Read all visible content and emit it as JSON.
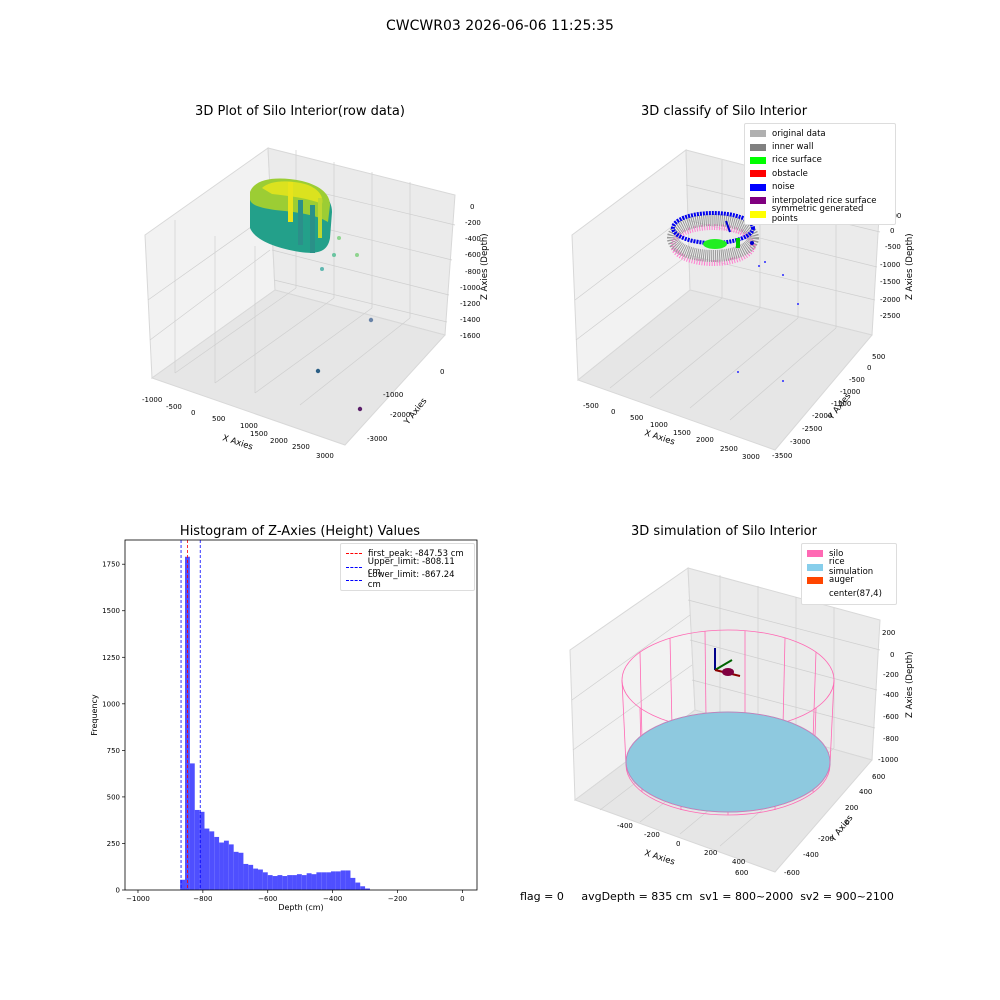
{
  "figure": {
    "suptitle": "CWCWR03 2026-06-06 11:25:35",
    "footer": "flag = 0     avgDepth = 835 cm  sv1 = 800~2000  sv2 = 900~2100"
  },
  "panels": {
    "raw": {
      "title": "3D Plot of Silo Interior(row data)",
      "xlabel": "X Axies",
      "ylabel": "Y Axies",
      "zlabel": "Z Axies (Depth)",
      "xticks": [
        "-1000",
        "-500",
        "0",
        "500",
        "1000",
        "1500",
        "2000",
        "2500",
        "3000"
      ],
      "yticks": [
        "0",
        "-1000",
        "-2000",
        "-3000"
      ],
      "zticks": [
        "0",
        "-200",
        "-400",
        "-600",
        "-800",
        "-1000",
        "-1200",
        "-1400",
        "-1600"
      ]
    },
    "classify": {
      "title": "3D classify of Silo Interior",
      "xlabel": "X Axies",
      "ylabel": "Y Axies",
      "zlabel": "Z Axies (Depth)",
      "xticks": [
        "-500",
        "0",
        "500",
        "1000",
        "1500",
        "2000",
        "2500",
        "3000"
      ],
      "yticks": [
        "500",
        "0",
        "-500",
        "-1000",
        "-1500",
        "-2000",
        "-2500",
        "-3000",
        "-3500"
      ],
      "zticks": [
        "500",
        "0",
        "-500",
        "-1000",
        "-1500",
        "-2000",
        "-2500"
      ],
      "legend": [
        {
          "label": "original data",
          "color": "#b0b0b0"
        },
        {
          "label": "inner wall",
          "color": "#808080"
        },
        {
          "label": "rice surface",
          "color": "#00ff00"
        },
        {
          "label": "obstacle",
          "color": "#ff0000"
        },
        {
          "label": "noise",
          "color": "#0000ff"
        },
        {
          "label": "interpolated rice surface",
          "color": "#800080"
        },
        {
          "label": "symmetric generated points",
          "color": "#ffff00"
        }
      ]
    },
    "simulation": {
      "title": "3D simulation of Silo Interior",
      "xlabel": "X Axies",
      "ylabel": "Y Axies",
      "zlabel": "Z Axies (Depth)",
      "xticks": [
        "-400",
        "-200",
        "0",
        "200",
        "400",
        "600"
      ],
      "yticks": [
        "600",
        "400",
        "200",
        "0",
        "-200",
        "-400",
        "-600"
      ],
      "zticks": [
        "200",
        "0",
        "-200",
        "-400",
        "-600",
        "-800",
        "-1000"
      ],
      "legend": [
        {
          "label": "silo",
          "color": "#ff69b4"
        },
        {
          "label": "rice simulation",
          "color": "#87ceeb"
        },
        {
          "label": "auger",
          "color": "#ff4500"
        },
        {
          "label": "center(87,4)",
          "color": "#ffffff"
        }
      ]
    }
  },
  "chart_data": [
    {
      "type": "bar",
      "title": "Histogram of Z-Axies (Height) Values",
      "xlabel": "Depth (cm)",
      "ylabel": "Frequency",
      "xlim": [
        -1040,
        45
      ],
      "ylim": [
        0,
        1880
      ],
      "xticks": [
        -1000,
        -800,
        -600,
        -400,
        -200,
        0
      ],
      "yticks": [
        0,
        250,
        500,
        750,
        1000,
        1250,
        1500,
        1750
      ],
      "bin_width": 15,
      "bin_start": -870,
      "values": [
        55,
        1790,
        680,
        430,
        420,
        330,
        315,
        285,
        255,
        265,
        245,
        205,
        200,
        140,
        135,
        115,
        110,
        95,
        80,
        75,
        80,
        75,
        80,
        80,
        85,
        80,
        90,
        85,
        95,
        95,
        95,
        100,
        100,
        105,
        105,
        65,
        40,
        20,
        8
      ],
      "vlines": [
        {
          "label": "first_peak: -847.53 cm",
          "x": -847.53,
          "color": "#ff0000"
        },
        {
          "label": "Upper_limit: -808.11 cm",
          "x": -808.11,
          "color": "#0000ff"
        },
        {
          "label": "Lower_limit: -867.24 cm",
          "x": -867.24,
          "color": "#0000ff"
        }
      ],
      "bar_color": "#4f4fff",
      "legend_position": "top-right"
    }
  ]
}
